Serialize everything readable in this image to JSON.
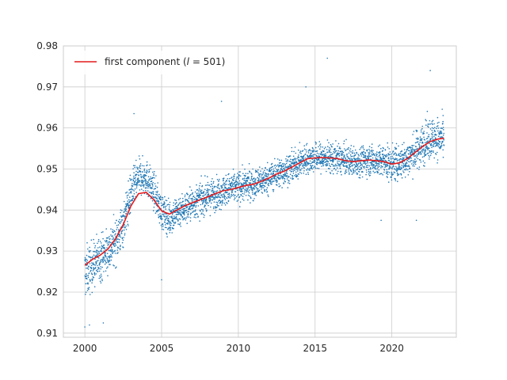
{
  "chart_data": {
    "type": "scatter",
    "title": "",
    "xlabel": "",
    "ylabel": "",
    "xlim": [
      1998.6,
      2024.2
    ],
    "ylim": [
      0.909,
      0.98
    ],
    "x_ticks": [
      2000,
      2005,
      2010,
      2015,
      2020
    ],
    "x_tick_labels": [
      "2000",
      "2005",
      "2010",
      "2015",
      "2020"
    ],
    "y_ticks": [
      0.91,
      0.92,
      0.93,
      0.94,
      0.95,
      0.96,
      0.97,
      0.98
    ],
    "y_tick_labels": [
      "0.91",
      "0.92",
      "0.93",
      "0.94",
      "0.95",
      "0.96",
      "0.97",
      "0.98"
    ],
    "grid": true,
    "legend_position": "upper-left",
    "scatter_color": "#1f77b4",
    "line_color": "#e41a1c",
    "series": [
      {
        "name": "first component (l = 501)",
        "name_parts": [
          "first component (",
          "l",
          " = 501)"
        ],
        "kind": "line",
        "x": [
          2000.0,
          2000.5,
          2001.0,
          2001.5,
          2002.0,
          2002.5,
          2003.0,
          2003.5,
          2004.0,
          2004.5,
          2005.0,
          2005.5,
          2006.0,
          2006.5,
          2007.0,
          2007.5,
          2008.0,
          2008.5,
          2009.0,
          2009.5,
          2010.0,
          2010.5,
          2011.0,
          2011.5,
          2012.0,
          2012.5,
          2013.0,
          2013.5,
          2014.0,
          2014.5,
          2015.0,
          2015.5,
          2016.0,
          2016.5,
          2017.0,
          2017.5,
          2018.0,
          2018.5,
          2019.0,
          2019.5,
          2020.0,
          2020.5,
          2021.0,
          2021.5,
          2022.0,
          2022.5,
          2023.0,
          2023.4
        ],
        "y": [
          0.9265,
          0.928,
          0.929,
          0.9305,
          0.933,
          0.9365,
          0.941,
          0.944,
          0.9443,
          0.9425,
          0.9398,
          0.939,
          0.94,
          0.941,
          0.9418,
          0.9425,
          0.9432,
          0.944,
          0.9447,
          0.945,
          0.9455,
          0.946,
          0.9463,
          0.947,
          0.9478,
          0.9488,
          0.9495,
          0.9505,
          0.9515,
          0.9525,
          0.9527,
          0.9528,
          0.9527,
          0.9525,
          0.952,
          0.9518,
          0.952,
          0.9522,
          0.952,
          0.9518,
          0.9512,
          0.9515,
          0.9525,
          0.954,
          0.9555,
          0.9567,
          0.9573,
          0.9575
        ]
      },
      {
        "name": "",
        "kind": "scatter",
        "note_density": "dense daily observations; summarized by band per half-year",
        "x": [
          2000.0,
          2000.5,
          2001.0,
          2001.5,
          2002.0,
          2002.5,
          2003.0,
          2003.5,
          2004.0,
          2004.5,
          2005.0,
          2005.5,
          2006.0,
          2006.5,
          2007.0,
          2007.5,
          2008.0,
          2008.5,
          2009.0,
          2009.5,
          2010.0,
          2010.5,
          2011.0,
          2011.5,
          2012.0,
          2012.5,
          2013.0,
          2013.5,
          2014.0,
          2014.5,
          2015.0,
          2015.5,
          2016.0,
          2016.5,
          2017.0,
          2017.5,
          2018.0,
          2018.5,
          2019.0,
          2019.5,
          2020.0,
          2020.5,
          2021.0,
          2021.5,
          2022.0,
          2022.5,
          2023.0,
          2023.4
        ],
        "center": [
          0.9245,
          0.9265,
          0.9285,
          0.93,
          0.9325,
          0.9365,
          0.944,
          0.948,
          0.948,
          0.9445,
          0.9395,
          0.938,
          0.9395,
          0.9405,
          0.9415,
          0.9425,
          0.9432,
          0.944,
          0.9447,
          0.9452,
          0.9456,
          0.946,
          0.9464,
          0.947,
          0.9478,
          0.9488,
          0.9496,
          0.9505,
          0.9515,
          0.9525,
          0.9527,
          0.9528,
          0.9527,
          0.9525,
          0.952,
          0.9518,
          0.952,
          0.9522,
          0.952,
          0.9518,
          0.9512,
          0.9515,
          0.9525,
          0.954,
          0.956,
          0.9575,
          0.9575,
          0.957
        ],
        "spread": [
          0.0045,
          0.004,
          0.004,
          0.0038,
          0.0038,
          0.0038,
          0.0035,
          0.003,
          0.003,
          0.003,
          0.003,
          0.003,
          0.0028,
          0.0028,
          0.0028,
          0.0028,
          0.0028,
          0.0027,
          0.0027,
          0.0027,
          0.0027,
          0.0026,
          0.0026,
          0.0026,
          0.0025,
          0.0025,
          0.0025,
          0.0025,
          0.0025,
          0.0025,
          0.0025,
          0.0025,
          0.0025,
          0.0025,
          0.0025,
          0.0025,
          0.0025,
          0.0025,
          0.0025,
          0.0028,
          0.003,
          0.003,
          0.003,
          0.0032,
          0.0035,
          0.0035,
          0.0035,
          0.0035
        ],
        "outliers_x": [
          2000.0,
          2000.3,
          2001.2,
          2003.2,
          2005.0,
          2008.9,
          2014.4,
          2015.8,
          2019.3,
          2021.6,
          2022.5
        ],
        "outliers_y": [
          0.9115,
          0.912,
          0.9125,
          0.9635,
          0.923,
          0.9665,
          0.97,
          0.977,
          0.9375,
          0.9375,
          0.974
        ]
      }
    ]
  }
}
